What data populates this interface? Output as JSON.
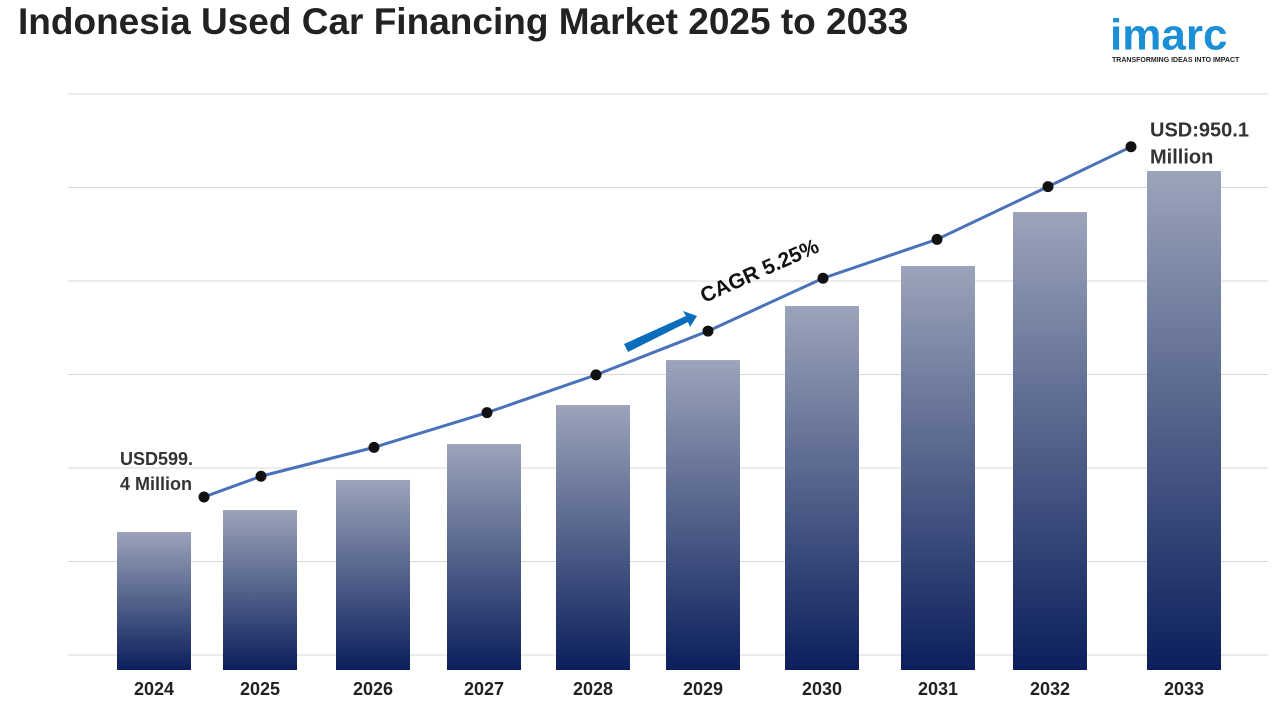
{
  "chart_data": {
    "type": "bar",
    "title": "Indonesia Used Car Financing Market 2025 to 2033",
    "logo": {
      "name": "imarc",
      "tagline": "TRANSFORMING IDEAS INTO IMPACT"
    },
    "categories": [
      "2024",
      "2025",
      "2026",
      "2027",
      "2028",
      "2029",
      "2030",
      "2031",
      "2032",
      "2033"
    ],
    "values": [
      599.4,
      620.7,
      649.9,
      684.8,
      722.7,
      766.4,
      818.9,
      857.8,
      910.2,
      950.1
    ],
    "ylim": [
      465.3,
      1024.9
    ],
    "annotations": [
      {
        "lines": [
          "USD599.",
          "4 Million"
        ]
      },
      {
        "lines": [
          "USD:950.1",
          "Million"
        ]
      },
      {
        "text": "CAGR 5.25%"
      }
    ],
    "bar_gradient": [
      "#9ba4ba",
      "#0c1f5c"
    ],
    "line_color": "#4a72b8",
    "grid": true
  }
}
